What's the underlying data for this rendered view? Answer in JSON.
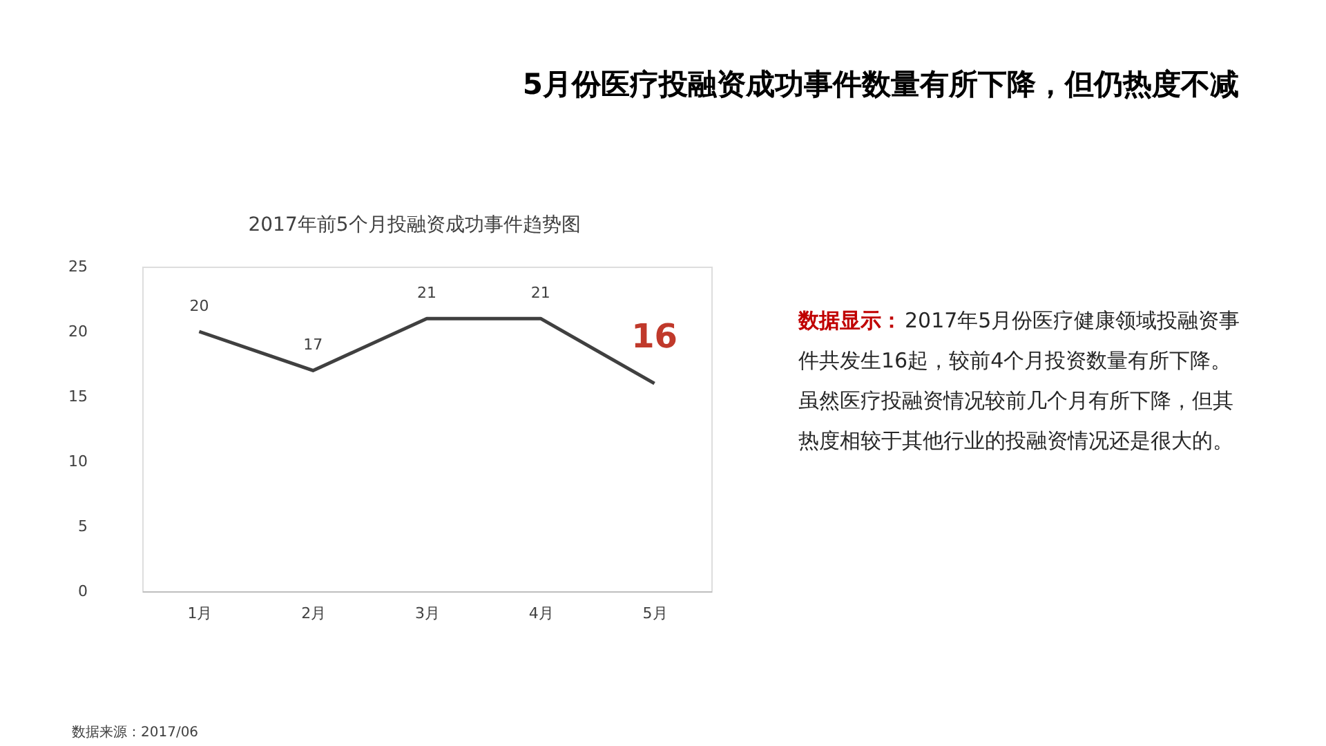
{
  "chart_data": {
    "type": "line",
    "title": "5月份医疗投融资成功事件数量有所下降，但仍热度不减",
    "subtitle": "2017年前5个月投融资成功事件趋势图",
    "categories": [
      "1月",
      "2月",
      "3月",
      "4月",
      "5月"
    ],
    "series": [
      {
        "color": "#404040",
        "values": [
          20,
          17,
          21,
          21,
          16
        ]
      }
    ],
    "ylim": [
      0,
      25
    ],
    "yticks": [
      0,
      5,
      10,
      15,
      20,
      25
    ],
    "grid": false,
    "data_labels": true,
    "marker": "none",
    "line_style": "solid",
    "annotations": [
      "数据显示：2017年5月份医疗健康领域投融资事件共发生16起，较前4个月投资数量有所下降。",
      "虽然医疗投融资情况较前几个月有所下降，但其热度相较于其他行业的投融资情况还是很大的。",
      "数据来源：2017/06"
    ]
  }
}
